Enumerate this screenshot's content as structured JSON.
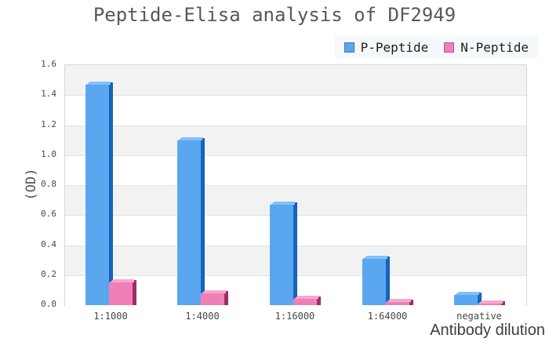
{
  "chart_data": {
    "type": "bar",
    "title": "Peptide-Elisa analysis of DF2949",
    "categories": [
      "1:1000",
      "1:4000",
      "1:16000",
      "1:64000",
      "negative"
    ],
    "series": [
      {
        "name": "P-Peptide",
        "values": [
          1.47,
          1.1,
          0.67,
          0.31,
          0.07
        ],
        "color": "#5aa7ef",
        "side_color": "#1563bd",
        "top_color": "#83c1f8",
        "swatch_border": "#3d74b8"
      },
      {
        "name": "N-Peptide",
        "values": [
          0.15,
          0.08,
          0.04,
          0.02,
          0.01
        ],
        "color": "#f07fb8",
        "side_color": "#9c2f63",
        "top_color": "#f8a8d0",
        "swatch_border": "#c2548e"
      }
    ],
    "xlabel": "Antibody dilution",
    "ylabel": "(OD)",
    "ylim": [
      0,
      1.6
    ],
    "ytick_step": 0.2,
    "yticks": [
      "1.6",
      "1.4",
      "1.2",
      "1.0",
      "0.8",
      "0.6",
      "0.4",
      "0.2",
      "0.0"
    ],
    "grid": true,
    "legend_position": "top-right",
    "style": {
      "band_gray": "#f2f2f2",
      "band_white": "#ffffff",
      "gridline": "#e3e3e3",
      "plot_border": "#d8d8d8",
      "axis_line": "#c6c6c6",
      "title_color": "#585858",
      "tick_color": "#474747",
      "axis_label_color": "#3d3d3d",
      "legend_bg": "#f5f9fc"
    }
  }
}
